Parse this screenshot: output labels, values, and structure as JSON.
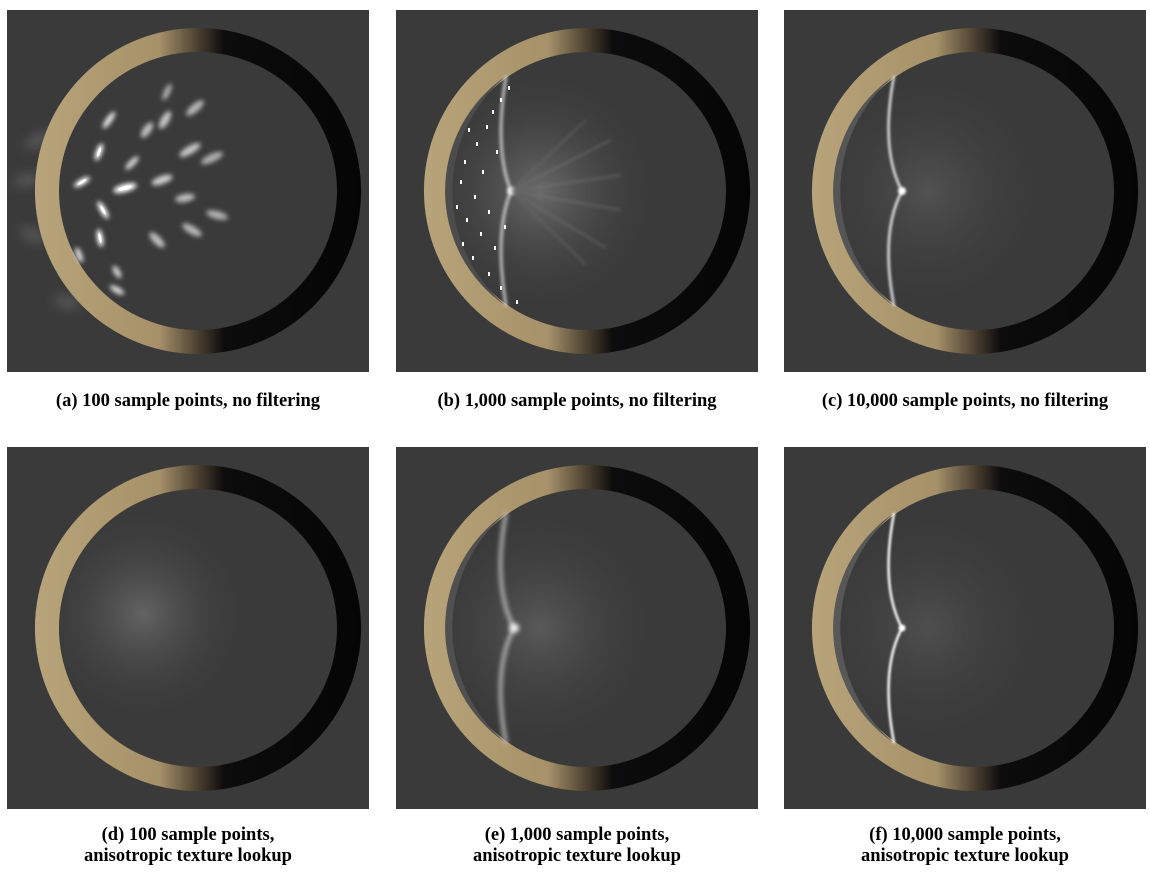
{
  "figure": {
    "panels": [
      {
        "id": "a",
        "caption_lines": [
          "(a) 100 sample points, no filtering"
        ],
        "samples": 100,
        "filtering": "none"
      },
      {
        "id": "b",
        "caption_lines": [
          "(b) 1,000 sample points, no filtering"
        ],
        "samples": 1000,
        "filtering": "none"
      },
      {
        "id": "c",
        "caption_lines": [
          "(c) 10,000 sample points, no filtering"
        ],
        "samples": 10000,
        "filtering": "none"
      },
      {
        "id": "d",
        "caption_lines": [
          "(d) 100 sample points,",
          "anisotropic texture lookup"
        ],
        "samples": 100,
        "filtering": "anisotropic"
      },
      {
        "id": "e",
        "caption_lines": [
          "(e) 1,000 sample points,",
          "anisotropic texture lookup"
        ],
        "samples": 1000,
        "filtering": "anisotropic"
      },
      {
        "id": "f",
        "caption_lines": [
          "(f) 10,000 sample points,",
          "anisotropic texture lookup"
        ],
        "samples": 10000,
        "filtering": "anisotropic"
      }
    ]
  },
  "colors": {
    "background": "#3a3a3a",
    "ring_gold": "#b9a57a",
    "ring_dark": "#070707",
    "caustic": "#ffffff",
    "caption_text": "#000000"
  }
}
